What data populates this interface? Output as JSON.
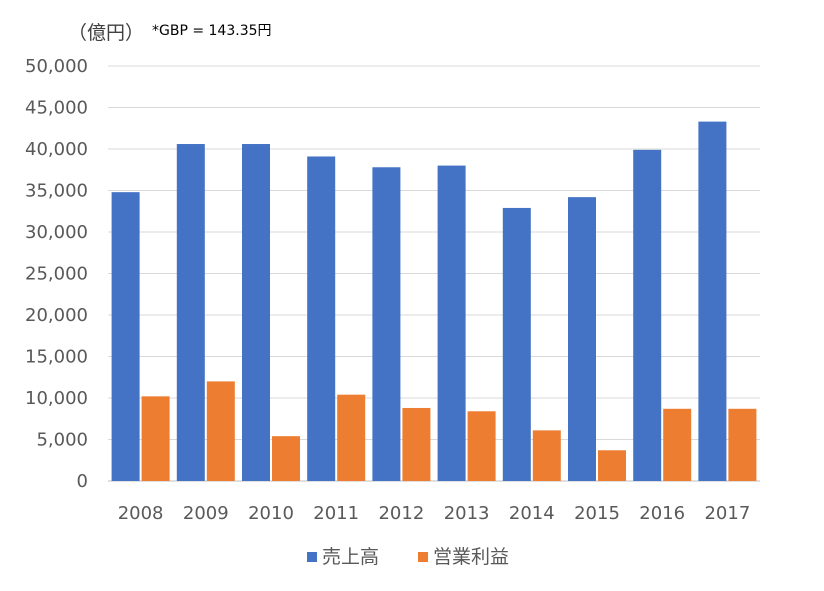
{
  "chart_data": {
    "type": "bar",
    "unit_label": "（億円）",
    "note": "*GBP = 143.35円",
    "categories": [
      "2008",
      "2009",
      "2010",
      "2011",
      "2012",
      "2013",
      "2014",
      "2015",
      "2016",
      "2017"
    ],
    "series": [
      {
        "name": "売上高",
        "color": "#4472C4",
        "values": [
          34800,
          40600,
          40600,
          39100,
          37800,
          38000,
          32900,
          34200,
          39900,
          43300
        ]
      },
      {
        "name": "営業利益",
        "color": "#ED7D31",
        "values": [
          10200,
          12000,
          5400,
          10400,
          8800,
          8400,
          6100,
          3700,
          8700,
          8700
        ]
      }
    ],
    "y_ticks": [
      "0",
      "5,000",
      "10,000",
      "15,000",
      "20,000",
      "25,000",
      "30,000",
      "35,000",
      "40,000",
      "45,000",
      "50,000"
    ],
    "ylim": [
      0,
      50000
    ],
    "grid": true,
    "legend_position": "bottom"
  }
}
